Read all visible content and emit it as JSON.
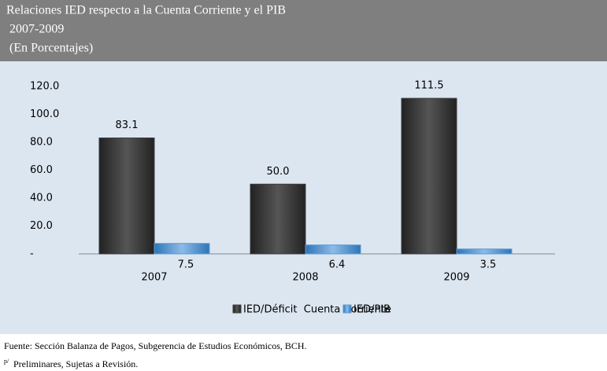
{
  "chart_data": {
    "type": "bar",
    "title": [
      "Relaciones IED respecto a la Cuenta Corriente y el PIB",
      " 2007-2009",
      " (En Porcentajes)"
    ],
    "categories": [
      "2007",
      "2008",
      "2009"
    ],
    "series": [
      {
        "name": "IED/Déficit  Cuenta Corriente",
        "color": "#3c3c3c",
        "values": [
          83.1,
          50.0,
          111.5
        ],
        "value_labels": [
          "83.1",
          "50.0",
          "111.5"
        ]
      },
      {
        "name": "IED/PIB",
        "color": "#5b9bd5",
        "values": [
          7.5,
          6.4,
          3.5
        ],
        "value_labels": [
          "7.5",
          "6.4",
          "3.5"
        ]
      }
    ],
    "ylim": [
      0,
      120
    ],
    "yticks": [
      {
        "value": 0,
        "label": "-"
      },
      {
        "value": 20,
        "label": "20.0"
      },
      {
        "value": 40,
        "label": "40.0"
      },
      {
        "value": 60,
        "label": "60.0"
      },
      {
        "value": 80,
        "label": "80.0"
      },
      {
        "value": 100,
        "label": "100.0"
      },
      {
        "value": 120,
        "label": "120.0"
      }
    ],
    "grid": false,
    "legend": "bottom",
    "source": "Fuente: Sección Balanza de Pagos, Subgerencia de Estudios Económicos, BCH.",
    "note_marker": "p/",
    "note": "Preliminares, Sujetas a Revisión."
  }
}
